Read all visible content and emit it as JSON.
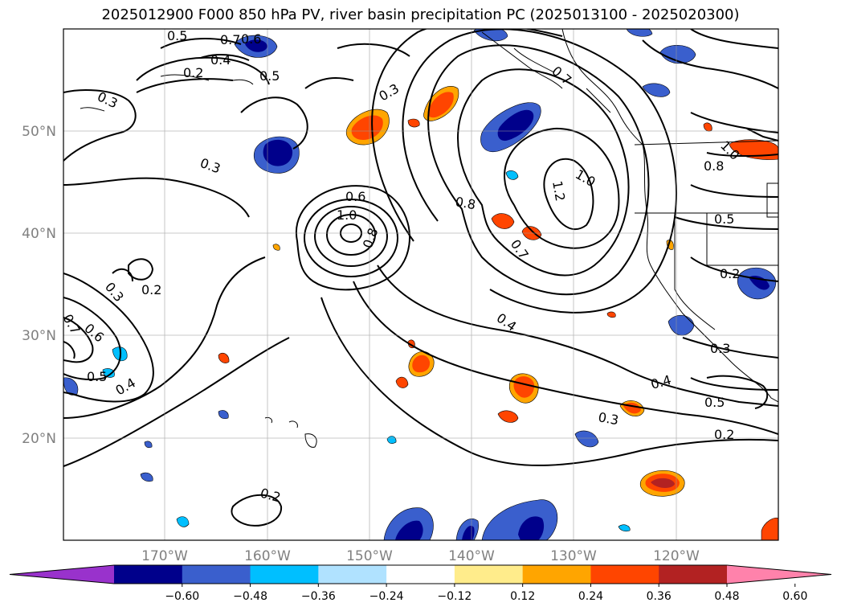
{
  "title": "2025012900 F000 850 hPa PV, river basin precipitation PC (2025013100 - 2025020300)",
  "lat_labels": [
    "50°N",
    "40°N",
    "30°N",
    "20°N"
  ],
  "lon_labels": [
    "170°W",
    "160°W",
    "150°W",
    "140°W",
    "130°W",
    "120°W"
  ],
  "contour_labels": [
    {
      "text": "0.5"
    },
    {
      "text": "0.7"
    },
    {
      "text": "0.6"
    },
    {
      "text": "0.4"
    },
    {
      "text": "0.5"
    },
    {
      "text": "0.2"
    },
    {
      "text": "0.3"
    },
    {
      "text": "0.3"
    },
    {
      "text": "0.3"
    },
    {
      "text": "0.6"
    },
    {
      "text": "1.0"
    },
    {
      "text": "0.8"
    },
    {
      "text": "0.7"
    },
    {
      "text": "1.0"
    },
    {
      "text": "1.2"
    },
    {
      "text": "0.8"
    },
    {
      "text": "0.7"
    },
    {
      "text": "0.4"
    },
    {
      "text": "0.3"
    },
    {
      "text": "0.2"
    },
    {
      "text": "0.6"
    },
    {
      "text": "0.5"
    },
    {
      "text": "0.4"
    },
    {
      "text": "0.7"
    },
    {
      "text": "0.2"
    },
    {
      "text": "0.3"
    },
    {
      "text": "0.4"
    },
    {
      "text": "0.5"
    },
    {
      "text": "0.2"
    },
    {
      "text": "0.3"
    },
    {
      "text": "0.8"
    },
    {
      "text": "1.0"
    },
    {
      "text": "0.5"
    },
    {
      "text": "0.2"
    }
  ],
  "colorbar": {
    "ticks": [
      "−0.60",
      "−0.48",
      "−0.36",
      "−0.24",
      "−0.12",
      "0.12",
      "0.24",
      "0.36",
      "0.48",
      "0.60"
    ],
    "colors": [
      "#9932cc",
      "#00008b",
      "#3a5fcd",
      "#00bfff",
      "#b0e2ff",
      "#ffffff",
      "#ffec8b",
      "#ffa500",
      "#ff4500",
      "#b22222",
      "#ff82ab"
    ]
  }
}
